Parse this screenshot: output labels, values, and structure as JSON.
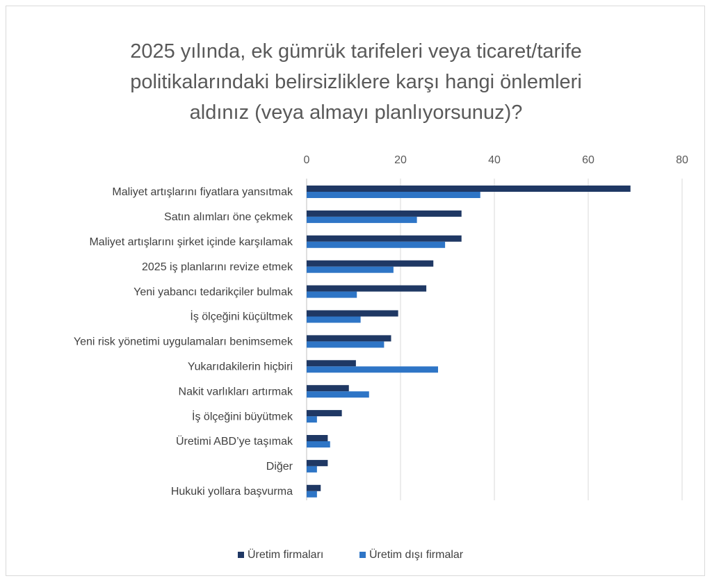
{
  "chart_data": {
    "type": "bar",
    "orientation": "horizontal",
    "title_lines": [
      "2025 yılında, ek gümrük tarifeleri veya ticaret/tarife",
      "politikalarındaki belirsizliklere karşı hangi önlemleri",
      "aldınız (veya almayı planlıyorsunuz)?"
    ],
    "categories": [
      "Maliyet artışlarını fiyatlara yansıtmak",
      "Satın alımları öne çekmek",
      "Maliyet artışlarını şirket içinde karşılamak",
      "2025 iş planlarını revize etmek",
      "Yeni yabancı tedarikçiler bulmak",
      "İş ölçeğini küçültmek",
      "Yeni risk yönetimi uygulamaları benimsemek",
      "Yukarıdakilerin hiçbiri",
      "Nakit varlıkları artırmak",
      "İş ölçeğini büyütmek",
      "Üretimi ABD’ye taşımak",
      "Diğer",
      "Hukuki yollara başvurma"
    ],
    "series": [
      {
        "name": "Üretim firmaları",
        "color": "#1f3864",
        "values": [
          69,
          33,
          33,
          27,
          25.5,
          19.5,
          18,
          10.5,
          9,
          7.5,
          4.5,
          4.5,
          3
        ]
      },
      {
        "name": "Üretim dışı firmalar",
        "color": "#2e75c6",
        "values": [
          37,
          23.5,
          29.5,
          18.5,
          10.7,
          11.5,
          16.5,
          28,
          13.3,
          2.2,
          5,
          2.2,
          2.2
        ]
      }
    ],
    "xlim": [
      0,
      80
    ],
    "xticks": [
      "0",
      "20",
      "40",
      "60",
      "80"
    ],
    "xtick_values": [
      0,
      20,
      40,
      60,
      80
    ],
    "axis_position": "top",
    "grid": true,
    "legend_position": "bottom"
  }
}
